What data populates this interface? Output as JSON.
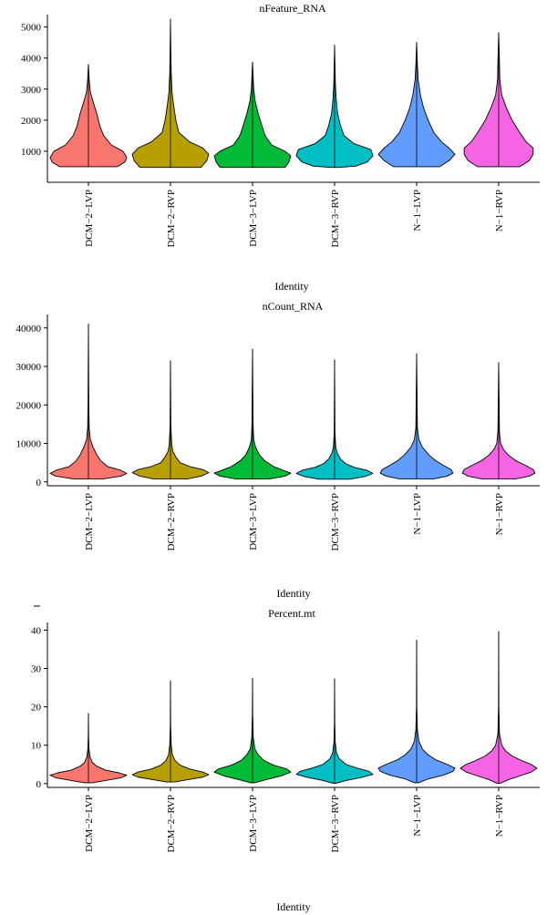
{
  "chart_data": [
    {
      "type": "violin",
      "title": "nFeature_RNA",
      "xlabel": "Identity",
      "ylabel": "",
      "categories": [
        "DCM−2−LVP",
        "DCM−2−RVP",
        "DCM−3−LVP",
        "DCM−3−RVP",
        "N−1−LVP",
        "N−1−RVP"
      ],
      "colors": [
        "#F8766D",
        "#B79F00",
        "#00BA38",
        "#00BFC4",
        "#619CFF",
        "#F564E3"
      ],
      "ylim": [
        0,
        5400
      ],
      "yticks": [
        1000,
        2000,
        3000,
        4000,
        5000
      ],
      "min": [
        500,
        480,
        480,
        480,
        500,
        500
      ],
      "max": [
        3800,
        5250,
        3870,
        4420,
        4510,
        4820
      ],
      "profiles": [
        [
          [
            500,
            0.75
          ],
          [
            650,
            0.95
          ],
          [
            800,
            1.0
          ],
          [
            1000,
            0.9
          ],
          [
            1200,
            0.6
          ],
          [
            1500,
            0.4
          ],
          [
            1800,
            0.3
          ],
          [
            2200,
            0.22
          ],
          [
            2600,
            0.12
          ],
          [
            2900,
            0.05
          ],
          [
            3300,
            0.02
          ],
          [
            3800,
            0
          ]
        ],
        [
          [
            480,
            0.8
          ],
          [
            700,
            0.95
          ],
          [
            900,
            1.0
          ],
          [
            1100,
            0.85
          ],
          [
            1300,
            0.5
          ],
          [
            1600,
            0.22
          ],
          [
            2000,
            0.14
          ],
          [
            2500,
            0.08
          ],
          [
            2900,
            0.04
          ],
          [
            3500,
            0.02
          ],
          [
            4200,
            0.01
          ],
          [
            5250,
            0
          ]
        ],
        [
          [
            480,
            0.85
          ],
          [
            650,
            0.95
          ],
          [
            850,
            1.0
          ],
          [
            1000,
            0.85
          ],
          [
            1200,
            0.5
          ],
          [
            1500,
            0.33
          ],
          [
            1800,
            0.25
          ],
          [
            2200,
            0.15
          ],
          [
            2600,
            0.07
          ],
          [
            3000,
            0.03
          ],
          [
            3870,
            0
          ]
        ],
        [
          [
            480,
            0.1
          ],
          [
            520,
            0.55
          ],
          [
            650,
            0.85
          ],
          [
            850,
            1.0
          ],
          [
            1050,
            0.95
          ],
          [
            1250,
            0.5
          ],
          [
            1500,
            0.25
          ],
          [
            1800,
            0.16
          ],
          [
            2200,
            0.08
          ],
          [
            2700,
            0.04
          ],
          [
            3200,
            0.02
          ],
          [
            4420,
            0
          ]
        ],
        [
          [
            500,
            0.6
          ],
          [
            700,
            0.85
          ],
          [
            900,
            1.0
          ],
          [
            1100,
            0.85
          ],
          [
            1300,
            0.65
          ],
          [
            1600,
            0.45
          ],
          [
            2000,
            0.3
          ],
          [
            2400,
            0.18
          ],
          [
            2800,
            0.1
          ],
          [
            3300,
            0.04
          ],
          [
            3800,
            0.02
          ],
          [
            4510,
            0
          ]
        ],
        [
          [
            500,
            0.55
          ],
          [
            700,
            0.8
          ],
          [
            900,
            0.9
          ],
          [
            1100,
            0.9
          ],
          [
            1300,
            0.72
          ],
          [
            1600,
            0.55
          ],
          [
            2000,
            0.35
          ],
          [
            2400,
            0.2
          ],
          [
            2800,
            0.08
          ],
          [
            3300,
            0.03
          ],
          [
            3900,
            0.02
          ],
          [
            4820,
            0
          ]
        ]
      ]
    },
    {
      "type": "violin",
      "title": "nCount_RNA",
      "xlabel": "Identity",
      "ylabel": "",
      "categories": [
        "DCM−2−LVP",
        "DCM−2−RVP",
        "DCM−3−LVP",
        "DCM−3−RVP",
        "N−1−LVP",
        "N−1−RVP"
      ],
      "colors": [
        "#F8766D",
        "#B79F00",
        "#00BA38",
        "#00BFC4",
        "#619CFF",
        "#F564E3"
      ],
      "ylim": [
        -1000,
        43500
      ],
      "yticks": [
        0,
        10000,
        20000,
        30000,
        40000
      ],
      "min": [
        800,
        800,
        800,
        700,
        800,
        800
      ],
      "max": [
        41000,
        31500,
        34500,
        31700,
        33300,
        31000
      ],
      "profiles": [
        [
          [
            800,
            0.4
          ],
          [
            1500,
            0.85
          ],
          [
            2200,
            1.0
          ],
          [
            3000,
            0.85
          ],
          [
            4000,
            0.5
          ],
          [
            5500,
            0.32
          ],
          [
            7000,
            0.22
          ],
          [
            9000,
            0.12
          ],
          [
            11000,
            0.05
          ],
          [
            14000,
            0.02
          ],
          [
            20000,
            0.01
          ],
          [
            41000,
            0
          ]
        ],
        [
          [
            800,
            0.45
          ],
          [
            1500,
            0.8
          ],
          [
            2400,
            1.0
          ],
          [
            3200,
            0.85
          ],
          [
            4000,
            0.5
          ],
          [
            5000,
            0.25
          ],
          [
            6500,
            0.14
          ],
          [
            8000,
            0.06
          ],
          [
            10000,
            0.03
          ],
          [
            15000,
            0.01
          ],
          [
            31500,
            0
          ]
        ],
        [
          [
            800,
            0.45
          ],
          [
            1500,
            0.85
          ],
          [
            2300,
            1.0
          ],
          [
            3000,
            0.8
          ],
          [
            4000,
            0.55
          ],
          [
            5500,
            0.32
          ],
          [
            7000,
            0.18
          ],
          [
            9000,
            0.08
          ],
          [
            11000,
            0.03
          ],
          [
            15000,
            0.015
          ],
          [
            34500,
            0
          ]
        ],
        [
          [
            700,
            0.4
          ],
          [
            1400,
            0.8
          ],
          [
            2200,
            1.0
          ],
          [
            3000,
            0.85
          ],
          [
            3800,
            0.5
          ],
          [
            4800,
            0.28
          ],
          [
            6000,
            0.15
          ],
          [
            7500,
            0.07
          ],
          [
            9000,
            0.03
          ],
          [
            13000,
            0.01
          ],
          [
            31700,
            0
          ]
        ],
        [
          [
            800,
            0.45
          ],
          [
            1500,
            0.8
          ],
          [
            2300,
            0.95
          ],
          [
            3200,
            0.9
          ],
          [
            4300,
            0.7
          ],
          [
            5500,
            0.5
          ],
          [
            7000,
            0.32
          ],
          [
            9000,
            0.15
          ],
          [
            11000,
            0.06
          ],
          [
            14000,
            0.02
          ],
          [
            33300,
            0
          ]
        ],
        [
          [
            800,
            0.45
          ],
          [
            1500,
            0.8
          ],
          [
            2300,
            0.95
          ],
          [
            3200,
            0.9
          ],
          [
            4300,
            0.7
          ],
          [
            5500,
            0.45
          ],
          [
            7000,
            0.25
          ],
          [
            8500,
            0.12
          ],
          [
            10000,
            0.05
          ],
          [
            13000,
            0.02
          ],
          [
            31000,
            0
          ]
        ]
      ]
    },
    {
      "type": "violin",
      "title": "Percent.mt",
      "xlabel": "Identity",
      "ylabel": "",
      "categories": [
        "DCM−2−LVP",
        "DCM−2−RVP",
        "DCM−3−LVP",
        "DCM−3−RVP",
        "N−1−LVP",
        "N−1−RVP"
      ],
      "colors": [
        "#F8766D",
        "#B79F00",
        "#00BA38",
        "#00BFC4",
        "#619CFF",
        "#F564E3"
      ],
      "ylim": [
        -1,
        42
      ],
      "yticks": [
        0,
        10,
        20,
        30,
        40
      ],
      "min": [
        0.2,
        0.4,
        0.2,
        0.1,
        0.2,
        0.1
      ],
      "max": [
        18.3,
        26.8,
        27.5,
        27.3,
        37.4,
        39.6
      ],
      "profiles": [
        [
          [
            0.2,
            0.1
          ],
          [
            0.8,
            0.45
          ],
          [
            1.5,
            0.85
          ],
          [
            2.2,
            1.0
          ],
          [
            2.8,
            0.8
          ],
          [
            3.5,
            0.45
          ],
          [
            4.5,
            0.22
          ],
          [
            5.5,
            0.1
          ],
          [
            7,
            0.04
          ],
          [
            9,
            0.015
          ],
          [
            12,
            0.005
          ],
          [
            18.3,
            0
          ]
        ],
        [
          [
            0.4,
            0.1
          ],
          [
            1,
            0.45
          ],
          [
            1.7,
            0.85
          ],
          [
            2.3,
            1.0
          ],
          [
            3,
            0.85
          ],
          [
            3.8,
            0.5
          ],
          [
            4.8,
            0.25
          ],
          [
            6,
            0.12
          ],
          [
            7.5,
            0.05
          ],
          [
            10,
            0.02
          ],
          [
            15,
            0.005
          ],
          [
            26.8,
            0
          ]
        ],
        [
          [
            0.2,
            0.05
          ],
          [
            1,
            0.35
          ],
          [
            2,
            0.75
          ],
          [
            3,
            1.0
          ],
          [
            3.8,
            0.9
          ],
          [
            4.8,
            0.55
          ],
          [
            6,
            0.3
          ],
          [
            7.5,
            0.15
          ],
          [
            9,
            0.06
          ],
          [
            12,
            0.02
          ],
          [
            18,
            0.005
          ],
          [
            27.5,
            0
          ]
        ],
        [
          [
            0.1,
            0.05
          ],
          [
            0.8,
            0.3
          ],
          [
            1.6,
            0.7
          ],
          [
            2.4,
            1.0
          ],
          [
            3.2,
            0.9
          ],
          [
            4,
            0.6
          ],
          [
            5,
            0.3
          ],
          [
            6.5,
            0.12
          ],
          [
            8,
            0.05
          ],
          [
            11,
            0.015
          ],
          [
            16,
            0.005
          ],
          [
            27.3,
            0
          ]
        ],
        [
          [
            0.2,
            0.05
          ],
          [
            1.2,
            0.3
          ],
          [
            2.2,
            0.7
          ],
          [
            3.2,
            0.95
          ],
          [
            4,
            1.0
          ],
          [
            5,
            0.8
          ],
          [
            6.2,
            0.5
          ],
          [
            7.5,
            0.3
          ],
          [
            9,
            0.15
          ],
          [
            11,
            0.06
          ],
          [
            14,
            0.02
          ],
          [
            20,
            0.005
          ],
          [
            37.4,
            0
          ]
        ],
        [
          [
            0.1,
            0.05
          ],
          [
            1,
            0.25
          ],
          [
            2,
            0.55
          ],
          [
            3,
            0.85
          ],
          [
            4,
            1.0
          ],
          [
            5,
            0.85
          ],
          [
            6,
            0.6
          ],
          [
            7.2,
            0.35
          ],
          [
            8.5,
            0.18
          ],
          [
            10,
            0.08
          ],
          [
            13,
            0.02
          ],
          [
            20,
            0.005
          ],
          [
            39.6,
            0
          ]
        ]
      ]
    }
  ]
}
